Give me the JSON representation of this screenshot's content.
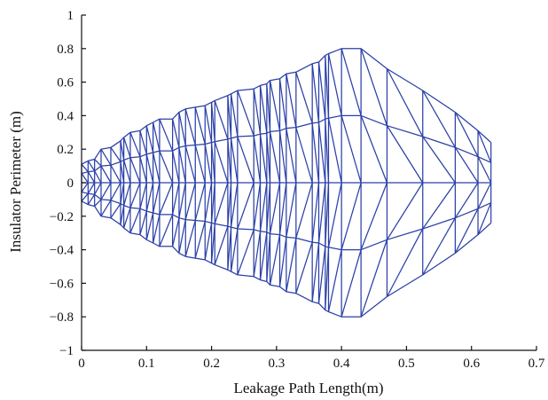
{
  "chart_data": {
    "type": "mesh",
    "title": "",
    "xlabel": "Leakage Path Length(m)",
    "ylabel": "Insulator  Perimeter (m)",
    "xlim": [
      0,
      0.7
    ],
    "ylim": [
      -1,
      1
    ],
    "xticks": [
      0,
      0.1,
      0.2,
      0.3,
      0.4,
      0.5,
      0.6,
      0.7
    ],
    "xtick_labels": [
      "0",
      "0.1",
      "0.2",
      "0.3",
      "0.4",
      "0.5",
      "0.6",
      "0.7"
    ],
    "yticks": [
      1,
      0.8,
      0.6,
      0.4,
      0.2,
      0,
      -0.2,
      -0.4,
      -0.6,
      -0.8,
      -1
    ],
    "ytick_labels": [
      "1",
      "0.8",
      "0.6",
      "0.4",
      "0.2",
      "0",
      "−0.2",
      "−0.4",
      "−0.6",
      "−0.8",
      "−1"
    ],
    "grid": false,
    "line_color": "#2b40a8",
    "profile": {
      "x": [
        0,
        0.01,
        0.02,
        0.03,
        0.045,
        0.06,
        0.065,
        0.075,
        0.09,
        0.1,
        0.11,
        0.12,
        0.14,
        0.15,
        0.16,
        0.175,
        0.19,
        0.2,
        0.205,
        0.225,
        0.23,
        0.24,
        0.265,
        0.275,
        0.285,
        0.29,
        0.305,
        0.315,
        0.33,
        0.355,
        0.365,
        0.375,
        0.38,
        0.4,
        0.43,
        0.47,
        0.525,
        0.575,
        0.61,
        0.63
      ],
      "r": [
        0.11,
        0.13,
        0.14,
        0.2,
        0.21,
        0.25,
        0.27,
        0.3,
        0.31,
        0.34,
        0.36,
        0.38,
        0.38,
        0.42,
        0.44,
        0.45,
        0.46,
        0.48,
        0.49,
        0.52,
        0.53,
        0.55,
        0.56,
        0.58,
        0.59,
        0.61,
        0.62,
        0.65,
        0.66,
        0.71,
        0.72,
        0.76,
        0.77,
        0.8,
        0.8,
        0.68,
        0.55,
        0.42,
        0.31,
        0.24
      ]
    }
  }
}
